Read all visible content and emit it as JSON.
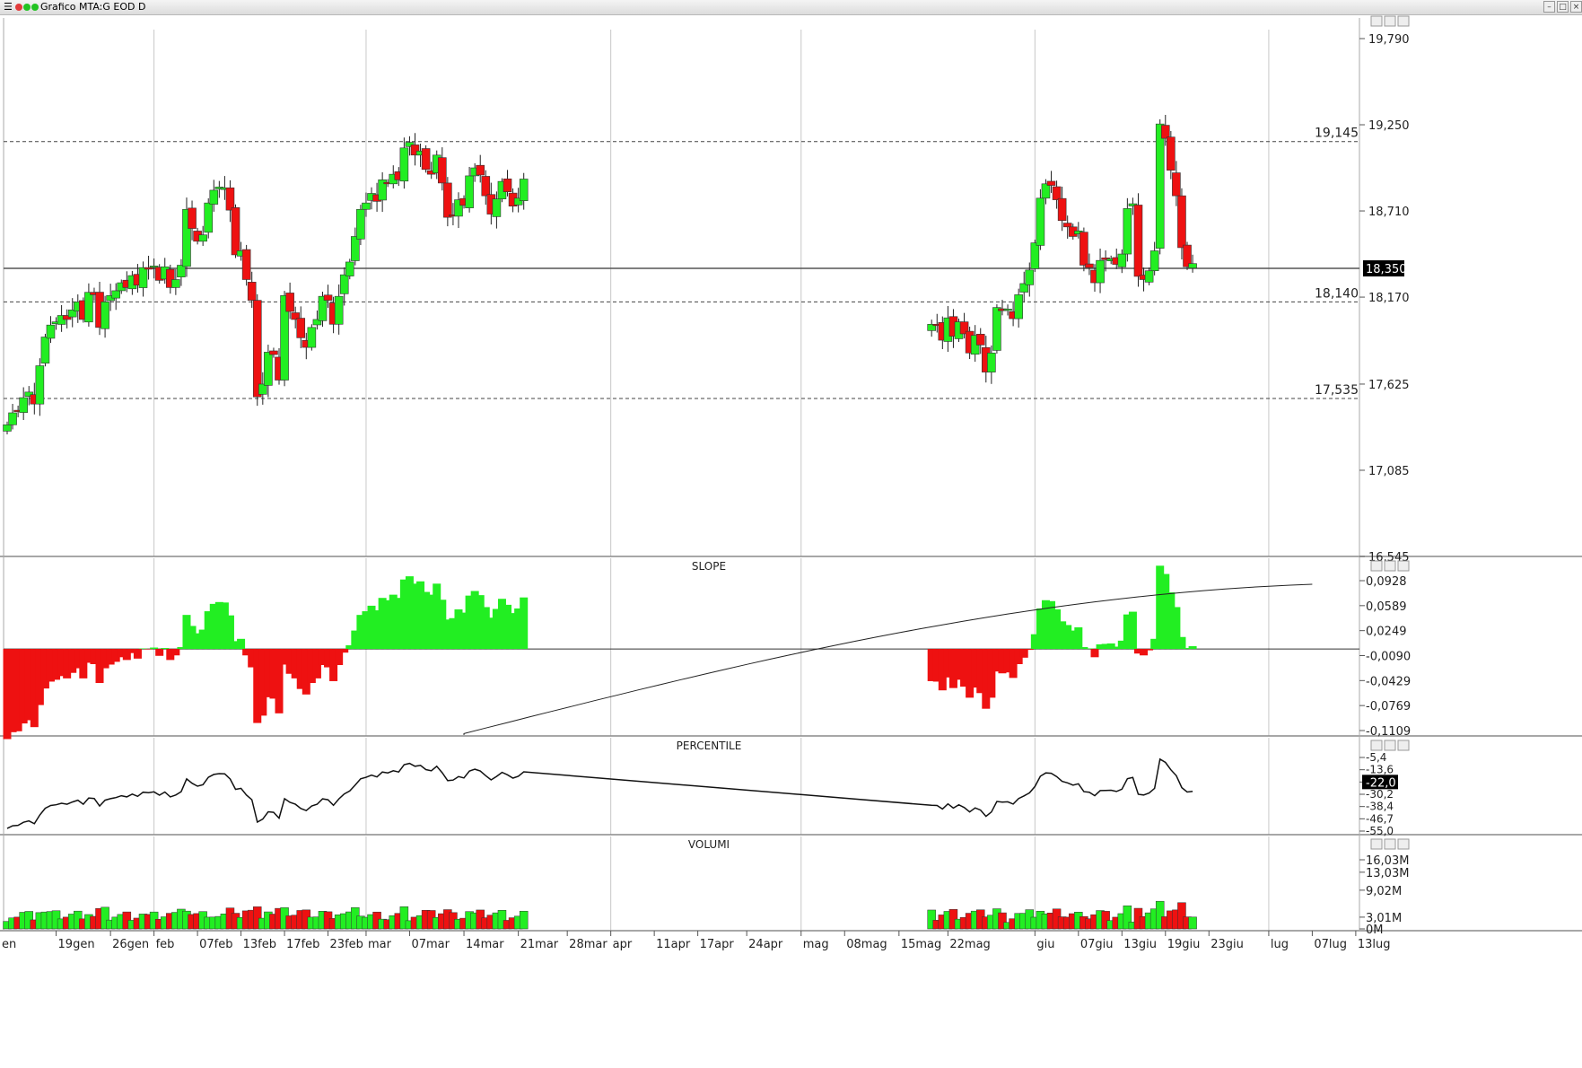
{
  "window": {
    "title": "Grafico MTA:G EOD D",
    "menu_icon": "hamburger-icon",
    "status_dots": [
      "#e23b3b",
      "#22c322",
      "#22c322"
    ]
  },
  "colors": {
    "up": "#22ee22",
    "down": "#ee1111",
    "grid": "#c8c8c8",
    "axis": "#555555",
    "text": "#222222"
  },
  "time_axis": {
    "labels": [
      {
        "i": 9,
        "t": "19gen"
      },
      {
        "i": 19,
        "t": "26gen"
      },
      {
        "i": 27,
        "t": "feb"
      },
      {
        "i": 35,
        "t": "07feb"
      },
      {
        "i": 43,
        "t": "13feb"
      },
      {
        "i": 51,
        "t": "17feb"
      },
      {
        "i": 59,
        "t": "23feb"
      },
      {
        "i": 66,
        "t": "mar"
      },
      {
        "i": 74,
        "t": "07mar"
      },
      {
        "i": 84,
        "t": "14mar"
      },
      {
        "i": 94,
        "t": "21mar"
      },
      {
        "i": 103,
        "t": "28mar"
      },
      {
        "i": 111,
        "t": "apr"
      },
      {
        "i": 119,
        "t": "11apr"
      },
      {
        "i": 127,
        "t": "17apr"
      },
      {
        "i": 136,
        "t": "24apr"
      },
      {
        "i": 146,
        "t": "mag"
      },
      {
        "i": 154,
        "t": "08mag"
      },
      {
        "i": 164,
        "t": "15mag"
      },
      {
        "i": 173,
        "t": "22mag"
      },
      {
        "i": 189,
        "t": "giu"
      },
      {
        "i": 197,
        "t": "07giu"
      },
      {
        "i": 205,
        "t": "13giu"
      },
      {
        "i": 213,
        "t": "19giu"
      },
      {
        "i": 221,
        "t": "23giu"
      },
      {
        "i": 232,
        "t": "lug"
      },
      {
        "i": 240,
        "t": "07lug"
      },
      {
        "i": 248,
        "t": "13lug"
      }
    ],
    "first_label": "en",
    "vlines": [
      27,
      66,
      111,
      146,
      189,
      232
    ]
  },
  "chart_data": [
    {
      "type": "candlestick",
      "title": "",
      "ylim": [
        16545,
        19790
      ],
      "yticks": [
        16545,
        17085,
        17625,
        18170,
        18710,
        19250,
        19790
      ],
      "ytick_labels": [
        "16,545",
        "17,085",
        "17,625",
        "18,170",
        "18,710",
        "19,250",
        "19,790"
      ],
      "reference_lines": [
        {
          "value": 19145,
          "label": "19,145",
          "style": "dashed"
        },
        {
          "value": 18140,
          "label": "18,140",
          "style": "dashed"
        },
        {
          "value": 17535,
          "label": "17,535",
          "style": "dashed"
        },
        {
          "value": 18350,
          "label": "18,350",
          "style": "solid",
          "badge": true
        }
      ],
      "segments": [
        {
          "start": 0,
          "closes": [
            17370,
            17445,
            17455,
            17540,
            17575,
            17500,
            17740,
            17920,
            17995,
            18015,
            18055,
            18030,
            18090,
            18140,
            18030,
            18200,
            18185,
            17980,
            18140,
            18180,
            18210,
            18260,
            18230,
            18305,
            18245,
            18355,
            18345,
            18365,
            18275,
            18360,
            18230,
            18280,
            18370,
            18720,
            18600,
            18520,
            18560,
            18760,
            18840,
            18860,
            18855,
            18715,
            18435,
            18460,
            18280,
            18150,
            17545,
            17625,
            17825,
            17810,
            17650,
            18180,
            18080,
            18030,
            17915,
            17855,
            17980,
            18030,
            18175,
            18150,
            18000,
            18175,
            18310,
            18390,
            18550,
            18720,
            18760,
            18820,
            18770,
            18905,
            18880,
            18940,
            18905,
            19105,
            19140,
            19060,
            19085,
            18970,
            18940,
            19060,
            18885,
            18670,
            18685,
            18780,
            18745,
            18930,
            18980,
            18935,
            18805,
            18690,
            18785,
            18895,
            18830,
            18740,
            18790,
            18910
          ]
        },
        {
          "start": 170,
          "closes": [
            18000,
            17995,
            17900,
            18040,
            17925,
            18015,
            17940,
            17820,
            17930,
            17870,
            17700,
            17820,
            18105,
            18085,
            18095,
            18035,
            18185,
            18255,
            18340,
            18510,
            18790,
            18880,
            18870,
            18780,
            18650,
            18610,
            18550,
            18585,
            18370,
            18355,
            18260,
            18400,
            18405,
            18410,
            18375,
            18440,
            18725,
            18755,
            18300,
            18280,
            18335,
            18460,
            19255,
            19165,
            18965,
            18805,
            18480,
            18360,
            18380
          ]
        }
      ]
    },
    {
      "type": "bar",
      "title": "SLOPE",
      "ylim": [
        -0.1109,
        0.0928
      ],
      "ytick_labels": [
        "0,0928",
        "0,0589",
        "0,0249",
        "-0,0090",
        "-0,0429",
        "-0,0769",
        "-0,1109"
      ]
    },
    {
      "type": "line",
      "title": "PERCENTILE",
      "ytick_labels": [
        "-5,4",
        "-13,6",
        "-22,0",
        "-30,2",
        "-38,4",
        "-46,7",
        "-55,0"
      ],
      "current_label": "-22,0"
    },
    {
      "type": "bar",
      "title": "VOLUMI",
      "ylim": [
        0,
        16030000
      ],
      "ytick_labels": [
        "16,03M",
        "13,03M",
        "9,02M",
        "3,01M",
        "0M"
      ]
    }
  ]
}
